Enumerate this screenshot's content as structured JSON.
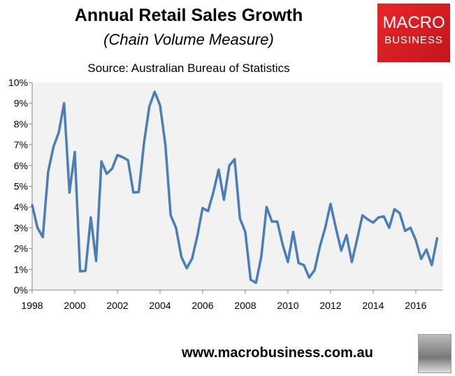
{
  "header": {
    "title": "Annual Retail Sales Growth",
    "subtitle": "(Chain Volume Measure)",
    "source": "Source: Australian Bureau of Statistics"
  },
  "logo": {
    "line1": "MACRO",
    "line2": "BUSINESS",
    "color": "#d91f26"
  },
  "footer": {
    "url": "www.macrobusiness.com.au"
  },
  "chart_data": {
    "type": "line",
    "title": "Annual Retail Sales Growth",
    "subtitle": "(Chain Volume Measure)",
    "frequency": "quarterly",
    "xlim": [
      1998,
      2017.25
    ],
    "ylim": [
      0,
      10
    ],
    "x_ticks": [
      "1998",
      "2000",
      "2002",
      "2004",
      "2006",
      "2008",
      "2010",
      "2012",
      "2014",
      "2016"
    ],
    "y_ticks": [
      "0%",
      "1%",
      "2%",
      "3%",
      "4%",
      "5%",
      "6%",
      "7%",
      "8%",
      "9%",
      "10%"
    ],
    "grid": false,
    "line_color": "#4a7ebb",
    "plot_background": "#f2f2f2",
    "x_start": 1998,
    "x_step": 0.25,
    "values": [
      4.1,
      3.0,
      2.55,
      5.7,
      6.9,
      7.6,
      9.0,
      4.7,
      6.65,
      0.9,
      0.93,
      3.5,
      1.4,
      6.2,
      5.6,
      5.85,
      6.5,
      6.4,
      6.25,
      4.7,
      4.72,
      7.1,
      8.85,
      9.55,
      8.9,
      7.0,
      3.6,
      3.0,
      1.6,
      1.05,
      1.5,
      2.6,
      3.95,
      3.8,
      4.7,
      5.8,
      4.35,
      6.0,
      6.3,
      3.45,
      2.8,
      0.5,
      0.35,
      1.6,
      4.0,
      3.3,
      3.3,
      2.2,
      1.35,
      2.8,
      1.3,
      1.2,
      0.6,
      0.95,
      2.1,
      3.0,
      4.15,
      3.0,
      1.9,
      2.65,
      1.35,
      2.45,
      3.6,
      3.4,
      3.25,
      3.5,
      3.55,
      3.0,
      3.9,
      3.7,
      2.85,
      3.0,
      2.4,
      1.5,
      1.95,
      1.2,
      2.5
    ]
  }
}
